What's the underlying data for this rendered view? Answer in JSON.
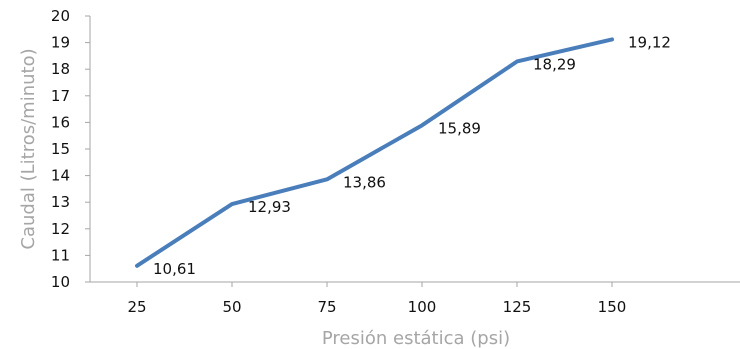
{
  "chart_data": {
    "type": "line",
    "xlabel": "Presión estática (psi)",
    "ylabel": "Caudal (Litros/minuto)",
    "categories": [
      "25",
      "50",
      "75",
      "100",
      "125",
      "150"
    ],
    "values": [
      10.61,
      12.93,
      13.86,
      15.89,
      18.29,
      19.12
    ],
    "data_labels": [
      "10,61",
      "12,93",
      "13,86",
      "15,89",
      "18,29",
      "19,12"
    ],
    "y_ticks": [
      "10",
      "11",
      "12",
      "13",
      "14",
      "15",
      "16",
      "17",
      "18",
      "19",
      "20"
    ],
    "ylim": [
      10,
      20
    ],
    "grid": false,
    "legend": "none",
    "colors": {
      "line": "#4a7ebb",
      "axis": "#a6a6a6",
      "axis_title": "#a6a6a6",
      "text": "#111111",
      "background": "#ffffff"
    }
  }
}
